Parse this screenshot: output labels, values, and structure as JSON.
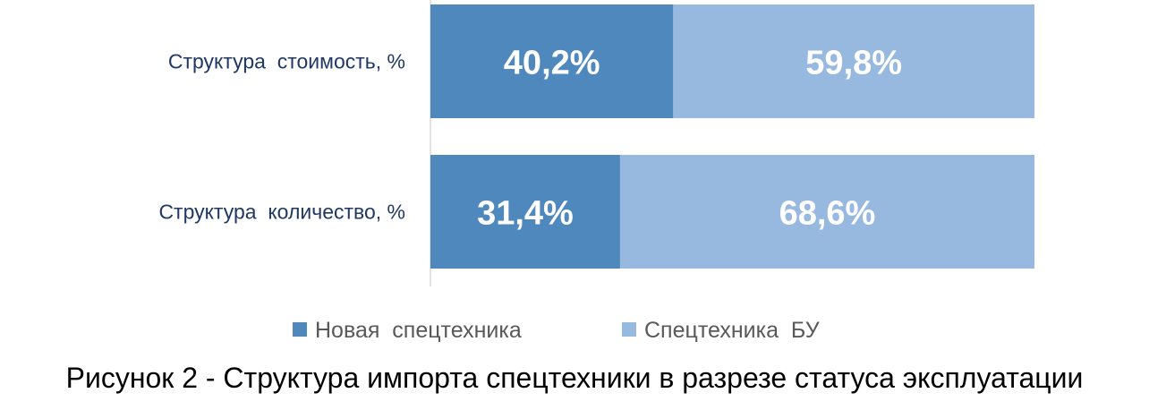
{
  "chart_data": {
    "type": "bar",
    "orientation": "horizontal",
    "stacked": true,
    "categories": [
      "Структура  стоимость, %",
      "Структура  количество, %"
    ],
    "series": [
      {
        "name": "Новая  спецтехника",
        "values": [
          40.2,
          31.4
        ],
        "labels": [
          "40,2%",
          "31,4%"
        ],
        "color": "#4f88bd"
      },
      {
        "name": "Спецтехника  БУ",
        "values": [
          59.8,
          68.6
        ],
        "labels": [
          "59,8%",
          "68,6%"
        ],
        "color": "#98b9df"
      }
    ],
    "xlim": [
      0,
      100
    ],
    "grid": false,
    "legend_position": "bottom"
  },
  "caption": "Рисунок 2 - Структура импорта спецтехники в разрезе статуса эксплуатации"
}
